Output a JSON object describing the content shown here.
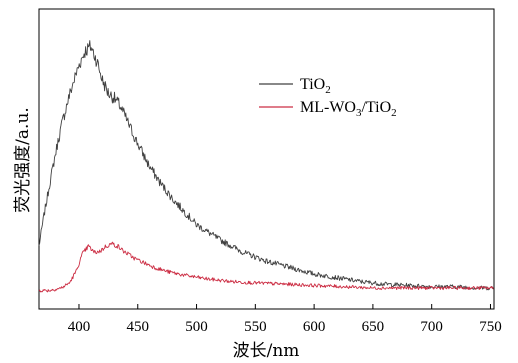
{
  "chart_data": {
    "type": "line",
    "xlabel": "波长/nm",
    "ylabel": "荧光强度/a.u.",
    "xlim": [
      366,
      753
    ],
    "ylim": [
      0,
      1
    ],
    "x_ticks": [
      "400",
      "450",
      "500",
      "550",
      "600",
      "650",
      "700",
      "750"
    ],
    "y_ticks_labeled": false,
    "grid": false,
    "legend_position": "upper-right",
    "series": [
      {
        "name": "TiO2",
        "name_base": "TiO",
        "name_sub": "2",
        "color": "#404040",
        "x": [
          366,
          370,
          375,
          380,
          385,
          390,
          395,
          400,
          405,
          410,
          415,
          420,
          425,
          430,
          435,
          440,
          445,
          450,
          460,
          470,
          480,
          490,
          500,
          520,
          540,
          560,
          580,
          600,
          620,
          640,
          660,
          680,
          700,
          720,
          740,
          753
        ],
        "y": [
          0.185,
          0.3,
          0.43,
          0.55,
          0.66,
          0.75,
          0.83,
          0.9,
          0.955,
          0.975,
          0.92,
          0.84,
          0.79,
          0.77,
          0.74,
          0.69,
          0.64,
          0.59,
          0.5,
          0.43,
          0.37,
          0.32,
          0.27,
          0.21,
          0.16,
          0.125,
          0.1,
          0.075,
          0.06,
          0.045,
          0.035,
          0.03,
          0.025,
          0.025,
          0.02,
          0.02
        ]
      },
      {
        "name": "ML-WO3/TiO2",
        "name_parts": [
          "ML-WO",
          "3",
          "/TiO",
          "2"
        ],
        "color": "#cc2e44",
        "x": [
          366,
          375,
          385,
          392,
          398,
          403,
          408,
          413,
          418,
          423,
          428,
          433,
          438,
          443,
          448,
          455,
          465,
          475,
          490,
          510,
          530,
          550,
          575,
          600,
          625,
          650,
          680,
          700,
          720,
          740,
          753
        ],
        "y": [
          0.01,
          0.01,
          0.02,
          0.04,
          0.09,
          0.155,
          0.185,
          0.16,
          0.165,
          0.185,
          0.195,
          0.185,
          0.165,
          0.15,
          0.135,
          0.12,
          0.1,
          0.085,
          0.07,
          0.055,
          0.045,
          0.04,
          0.035,
          0.03,
          0.025,
          0.02,
          0.02,
          0.02,
          0.02,
          0.02,
          0.02
        ]
      }
    ]
  }
}
